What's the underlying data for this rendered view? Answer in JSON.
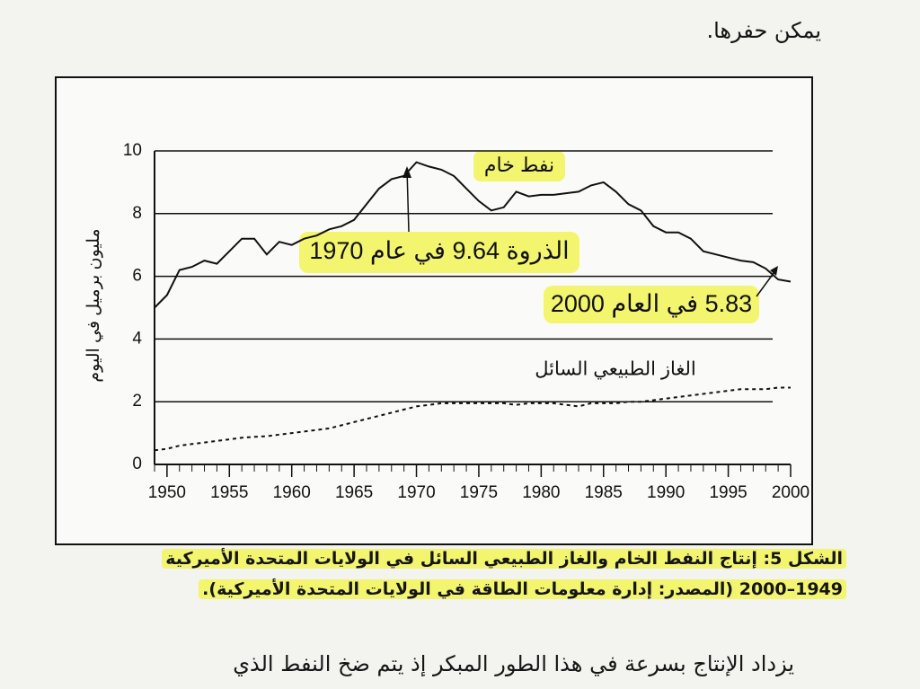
{
  "page": {
    "text_top": "يمكن حفرها.",
    "caption": [
      "الشكل 5: إنتاج النفط الخام والغاز الطبيعي السائل في الولايات المتحدة الأميركية",
      "1949–2000 (المصدر: إدارة معلومات الطاقة في الولايات المتحدة الأميركية)."
    ],
    "text_bottom": "يزداد الإنتاج بسرعة في هذا الطور المبكر إذ يتم ضخ النفط الذي"
  },
  "chart_data": {
    "type": "line",
    "y_label": "مليون برميل في اليوم",
    "x": [
      1949,
      1950,
      1951,
      1952,
      1953,
      1954,
      1955,
      1956,
      1957,
      1958,
      1959,
      1960,
      1961,
      1962,
      1963,
      1964,
      1965,
      1966,
      1967,
      1968,
      1969,
      1970,
      1971,
      1972,
      1973,
      1974,
      1975,
      1976,
      1977,
      1978,
      1979,
      1980,
      1981,
      1982,
      1983,
      1984,
      1985,
      1986,
      1987,
      1988,
      1989,
      1990,
      1991,
      1992,
      1993,
      1994,
      1995,
      1996,
      1997,
      1998,
      1999,
      2000
    ],
    "series": [
      {
        "name": "نفط خام",
        "color": "#111111",
        "dashed": false,
        "values": [
          5.0,
          5.4,
          6.2,
          6.3,
          6.5,
          6.4,
          6.8,
          7.2,
          7.2,
          6.7,
          7.1,
          7.0,
          7.2,
          7.3,
          7.5,
          7.6,
          7.8,
          8.3,
          8.8,
          9.1,
          9.2,
          9.64,
          9.5,
          9.4,
          9.2,
          8.8,
          8.4,
          8.1,
          8.2,
          8.7,
          8.55,
          8.6,
          8.6,
          8.65,
          8.7,
          8.9,
          9.0,
          8.7,
          8.3,
          8.1,
          7.6,
          7.4,
          7.4,
          7.2,
          6.8,
          6.7,
          6.6,
          6.5,
          6.45,
          6.25,
          5.9,
          5.83
        ]
      },
      {
        "name": "الغاز الطبيعي السائل",
        "color": "#111111",
        "dashed": true,
        "values": [
          0.45,
          0.5,
          0.6,
          0.65,
          0.7,
          0.75,
          0.8,
          0.85,
          0.88,
          0.9,
          0.95,
          1.0,
          1.05,
          1.1,
          1.15,
          1.25,
          1.35,
          1.45,
          1.55,
          1.65,
          1.75,
          1.85,
          1.9,
          1.95,
          1.95,
          1.95,
          1.95,
          1.95,
          1.95,
          1.9,
          1.95,
          1.95,
          1.95,
          1.9,
          1.85,
          1.95,
          1.95,
          1.95,
          2.0,
          2.0,
          2.05,
          2.1,
          2.15,
          2.2,
          2.25,
          2.3,
          2.35,
          2.4,
          2.4,
          2.4,
          2.45,
          2.45
        ]
      }
    ],
    "annotations": [
      "الذروة 9.64 في عام 1970",
      "5.83 في العام 2000"
    ],
    "xlim": [
      1949,
      2000
    ],
    "xticks": [
      1950,
      1955,
      1960,
      1965,
      1970,
      1975,
      1980,
      1985,
      1990,
      1995,
      2000
    ],
    "ylim": [
      0,
      10
    ],
    "yticks": [
      0,
      2,
      4,
      6,
      8,
      10
    ],
    "grid": true
  }
}
